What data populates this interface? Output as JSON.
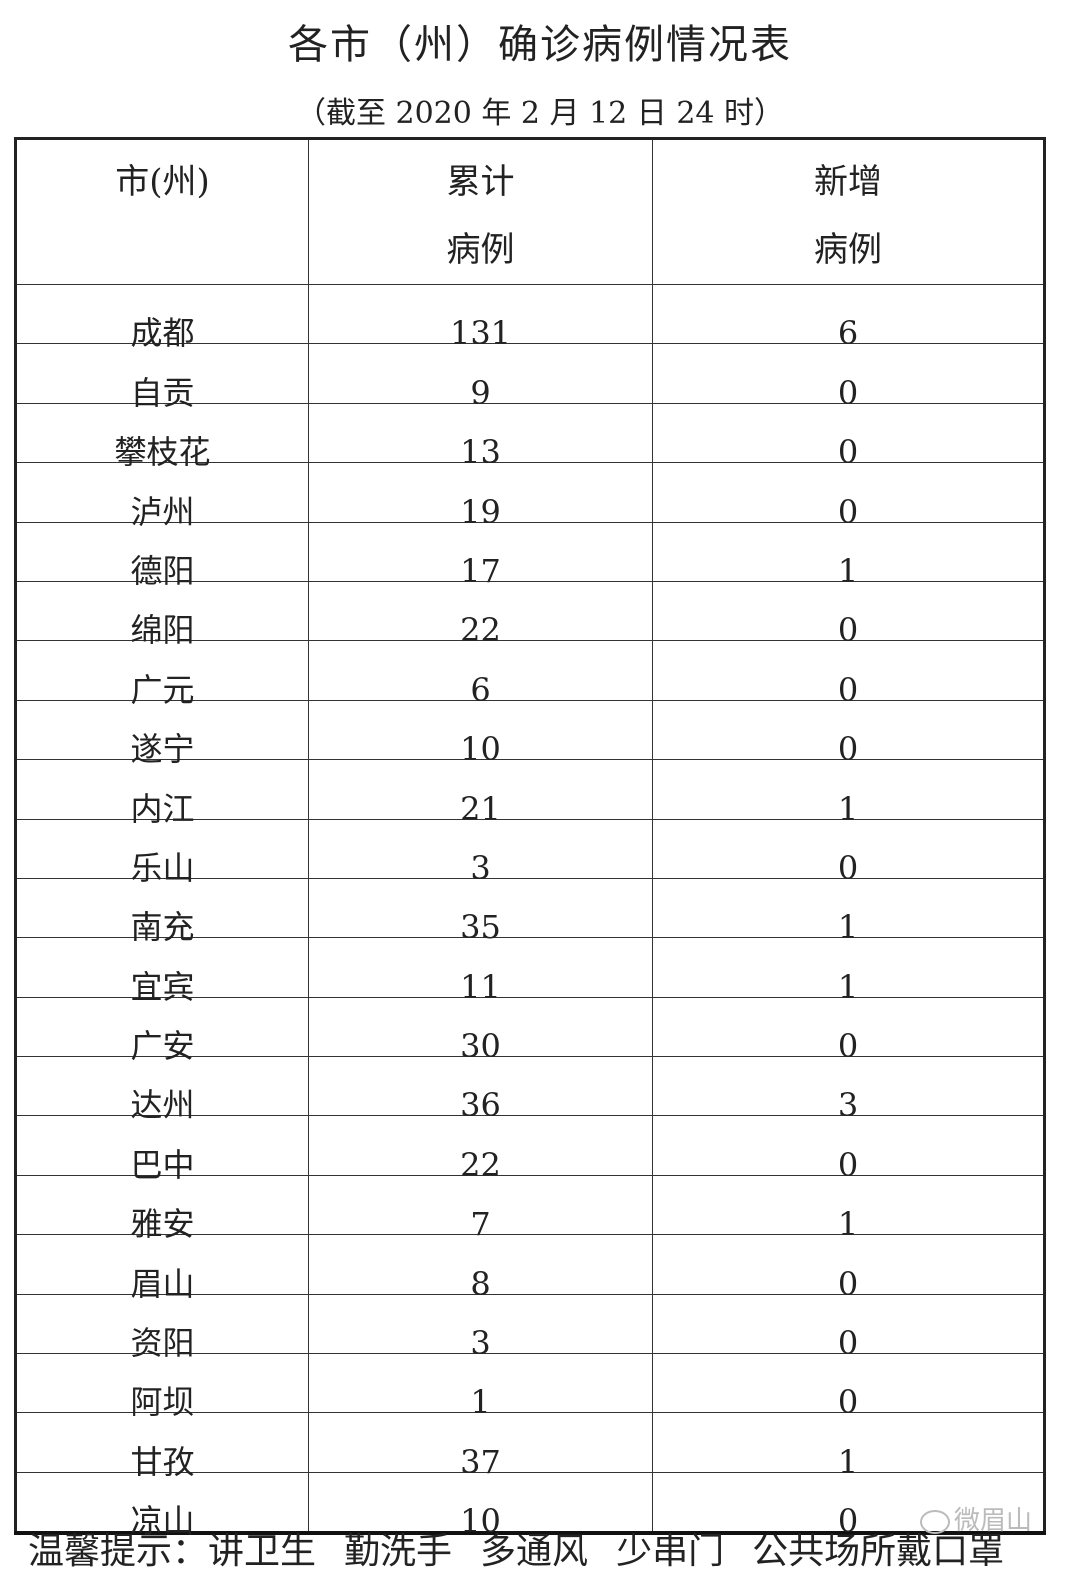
{
  "title": "各市（州）确诊病例情况表",
  "subtitle": "（截至 2020 年 2 月 12 日 24 时）",
  "table": {
    "headers": [
      [
        "市(州)"
      ],
      [
        "累计",
        "病例"
      ],
      [
        "新增",
        "病例"
      ]
    ],
    "rows": [
      [
        "成都",
        "131",
        "6"
      ],
      [
        "自贡",
        "9",
        "0"
      ],
      [
        "攀枝花",
        "13",
        "0"
      ],
      [
        "泸州",
        "19",
        "0"
      ],
      [
        "德阳",
        "17",
        "1"
      ],
      [
        "绵阳",
        "22",
        "0"
      ],
      [
        "广元",
        "6",
        "0"
      ],
      [
        "遂宁",
        "10",
        "0"
      ],
      [
        "内江",
        "21",
        "1"
      ],
      [
        "乐山",
        "3",
        "0"
      ],
      [
        "南充",
        "35",
        "1"
      ],
      [
        "宜宾",
        "11",
        "1"
      ],
      [
        "广安",
        "30",
        "0"
      ],
      [
        "达州",
        "36",
        "3"
      ],
      [
        "巴中",
        "22",
        "0"
      ],
      [
        "雅安",
        "7",
        "1"
      ],
      [
        "眉山",
        "8",
        "0"
      ],
      [
        "资阳",
        "3",
        "0"
      ],
      [
        "阿坝",
        "1",
        "0"
      ],
      [
        "甘孜",
        "37",
        "1"
      ],
      [
        "凉山",
        "10",
        "0"
      ]
    ]
  },
  "footer": {
    "label": "温馨提示：",
    "tips": [
      "讲卫生",
      "勤洗手",
      "多通风",
      "少串门",
      "公共场所戴口罩"
    ]
  },
  "watermark": {
    "text": "微眉山",
    "icon": "wechat-icon"
  }
}
